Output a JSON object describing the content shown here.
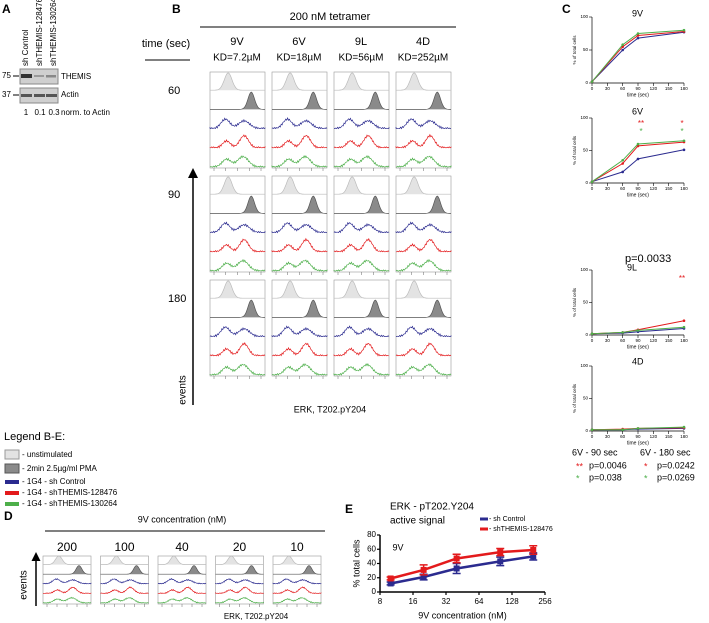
{
  "panel_a": {
    "label": "A",
    "lanes": [
      "sh Control",
      "shTHEMIS-128476",
      "shTHEMIS-130264"
    ],
    "markers": [
      "75",
      "37"
    ],
    "bands": [
      "THEMIS",
      "Actin"
    ],
    "norm_values": [
      "1",
      "0.1",
      "0.3"
    ],
    "norm_label": "norm. to Actin"
  },
  "legend": {
    "title": "Legend B-E:",
    "entries": [
      "- unstimulated",
      "- 2min 2.5µg/ml PMA",
      "- 1G4 - sh Control",
      "- 1G4 - shTHEMIS-128476",
      "- 1G4 - shTHEMIS-130264"
    ]
  },
  "panel_b": {
    "label": "B",
    "header": "200 nM tetramer",
    "row_header": "time (sec)",
    "columns": [
      {
        "peptide": "9V",
        "kd": "KD=7.2µM"
      },
      {
        "peptide": "6V",
        "kd": "KD=18µM"
      },
      {
        "peptide": "9L",
        "kd": "KD=56µM"
      },
      {
        "peptide": "4D",
        "kd": "KD=252µM"
      }
    ],
    "rows": [
      "60",
      "90",
      "180"
    ],
    "y_label": "events",
    "x_label": "ERK, T202.pY204"
  },
  "panel_c": {
    "label": "C",
    "stats": [
      {
        "title": "6V - 90 sec",
        "rows": [
          {
            "stars": "**",
            "color": "#e31a1c",
            "p": "p=0.0046"
          },
          {
            "stars": "*",
            "color": "#4daf4a",
            "p": "p=0.038"
          }
        ]
      },
      {
        "title": "6V - 180 sec",
        "rows": [
          {
            "stars": "*",
            "color": "#e31a1c",
            "p": "p=0.0242"
          },
          {
            "stars": "*",
            "color": "#4daf4a",
            "p": "p=0.0269"
          }
        ]
      }
    ]
  },
  "panel_d": {
    "label": "D",
    "header": "9V concentration (nM)",
    "columns": [
      "200",
      "100",
      "40",
      "20",
      "10"
    ],
    "y_label": "events",
    "x_label": "ERK, T202.pY204"
  },
  "panel_e": {
    "label": "E"
  },
  "chart_data": [
    {
      "type": "line",
      "title": "9V",
      "x": [
        0,
        60,
        90,
        180
      ],
      "xlim": [
        0,
        180
      ],
      "xticks": [
        0,
        30,
        60,
        90,
        120,
        150,
        180
      ],
      "ylim": [
        0,
        100
      ],
      "yticks": [
        0,
        50,
        100
      ],
      "x_label": "time (sec)",
      "y_label": "% of total cells",
      "series": [
        {
          "color": "#2b2b8f",
          "values": [
            2,
            50,
            68,
            77
          ]
        },
        {
          "color": "#e31a1c",
          "values": [
            2,
            55,
            72,
            78
          ]
        },
        {
          "color": "#4daf4a",
          "values": [
            2,
            58,
            75,
            80
          ]
        }
      ]
    },
    {
      "type": "line",
      "title": "6V",
      "x": [
        0,
        60,
        90,
        180
      ],
      "xlim": [
        0,
        180
      ],
      "xticks": [
        0,
        30,
        60,
        90,
        120,
        150,
        180
      ],
      "ylim": [
        0,
        100
      ],
      "yticks": [
        0,
        50,
        100
      ],
      "x_label": "time (sec)",
      "y_label": "% of total cells",
      "series": [
        {
          "color": "#2b2b8f",
          "values": [
            2,
            17,
            37,
            51
          ]
        },
        {
          "color": "#e31a1c",
          "values": [
            2,
            30,
            57,
            63
          ]
        },
        {
          "color": "#4daf4a",
          "values": [
            2,
            35,
            60,
            65
          ]
        }
      ],
      "annotations": [
        {
          "text": "**",
          "color": "#e31a1c"
        },
        {
          "text": "*",
          "color": "#4daf4a"
        },
        {
          "text": "*",
          "color": "#e31a1c"
        },
        {
          "text": "*",
          "color": "#4daf4a"
        }
      ]
    },
    {
      "type": "line",
      "title": "9L",
      "x": [
        0,
        60,
        90,
        180
      ],
      "xlim": [
        0,
        180
      ],
      "xticks": [
        0,
        30,
        60,
        90,
        120,
        150,
        180
      ],
      "ylim": [
        0,
        100
      ],
      "yticks": [
        0,
        50,
        100
      ],
      "x_label": "time (sec)",
      "y_label": "% of total cells",
      "series": [
        {
          "color": "#2b2b8f",
          "values": [
            2,
            3,
            5,
            10
          ]
        },
        {
          "color": "#e31a1c",
          "values": [
            2,
            4,
            8,
            22
          ]
        },
        {
          "color": "#4daf4a",
          "values": [
            2,
            4,
            7,
            12
          ]
        }
      ],
      "annotations": [
        {
          "text": "p=0.0033",
          "color": "#000000"
        },
        {
          "text": "**",
          "color": "#e31a1c"
        }
      ]
    },
    {
      "type": "line",
      "title": "4D",
      "x": [
        0,
        60,
        90,
        180
      ],
      "xlim": [
        0,
        180
      ],
      "xticks": [
        0,
        30,
        60,
        90,
        120,
        150,
        180
      ],
      "ylim": [
        0,
        100
      ],
      "yticks": [
        0,
        50,
        100
      ],
      "x_label": "time (sec)",
      "y_label": "% of total cells",
      "series": [
        {
          "color": "#2b2b8f",
          "values": [
            2,
            2,
            3,
            4
          ]
        },
        {
          "color": "#e31a1c",
          "values": [
            2,
            3,
            4,
            5
          ]
        },
        {
          "color": "#4daf4a",
          "values": [
            2,
            2,
            4,
            6
          ]
        }
      ]
    },
    {
      "type": "line",
      "title": "ERK - pT202.Y204",
      "subtitle": "active signal",
      "x": [
        10,
        20,
        40,
        100,
        200
      ],
      "xlog": 2,
      "xlim": [
        8,
        256
      ],
      "xticks": [
        8,
        16,
        32,
        64,
        128,
        256
      ],
      "ylim": [
        0,
        80
      ],
      "yticks": [
        0,
        20,
        40,
        60,
        80
      ],
      "x_label": "9V concentration (nM)",
      "y_label": "% total cells",
      "series": [
        {
          "name": "- sh Control",
          "color": "#2b2b8f",
          "values": [
            12,
            21,
            33,
            43,
            50
          ],
          "errors": [
            2,
            4,
            7,
            6,
            5
          ]
        },
        {
          "name": "- shTHEMIS-128476",
          "color": "#e31a1c",
          "values": [
            19,
            31,
            47,
            56,
            59
          ],
          "errors": [
            2,
            7,
            6,
            5,
            6
          ]
        }
      ],
      "annotations": [
        {
          "text": "9V",
          "color": "#000000"
        }
      ]
    }
  ]
}
